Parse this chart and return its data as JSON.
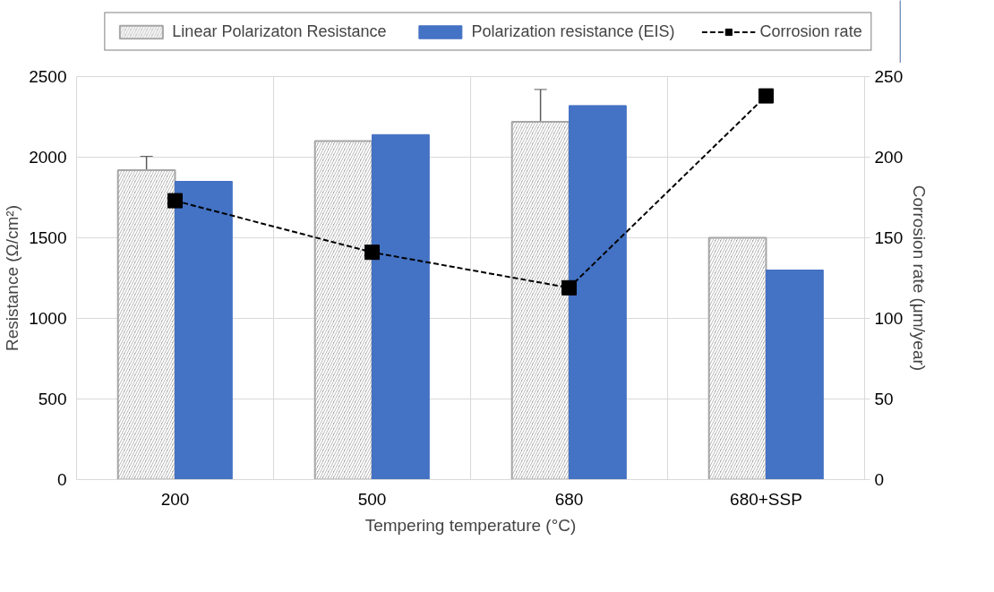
{
  "chart_data": {
    "type": "bar",
    "xlabel": "Tempering temperature (°C)",
    "ylabel": "Resistance (Ω/cm²)",
    "y2label": "Corrosion rate (μm/year)",
    "categories": [
      "200",
      "500",
      "680",
      "680+SSP"
    ],
    "series": [
      {
        "name": "Linear Polarizaton Resistance",
        "color": "#a6a6a6",
        "values": [
          1920,
          2100,
          2220,
          1500
        ],
        "errors": [
          [
            1830,
            2005
          ],
          null,
          [
            2020,
            2420
          ],
          null
        ]
      },
      {
        "name": "Polarization resistance (EIS)",
        "color": "#4472c4",
        "values": [
          1850,
          2140,
          2320,
          1300
        ]
      },
      {
        "name": "Corrosion rate",
        "type": "line",
        "axis": "y2",
        "color": "#000000",
        "marker": "square",
        "line_style": "dashed",
        "values": [
          173,
          141,
          119,
          238
        ]
      }
    ],
    "ylim": [
      0,
      2500
    ],
    "yticks": [
      0,
      500,
      1000,
      1500,
      2000,
      2500
    ],
    "y2lim": [
      0,
      250
    ],
    "y2ticks": [
      0,
      50,
      100,
      150,
      200,
      250
    ],
    "grid": true,
    "legend": "top"
  }
}
